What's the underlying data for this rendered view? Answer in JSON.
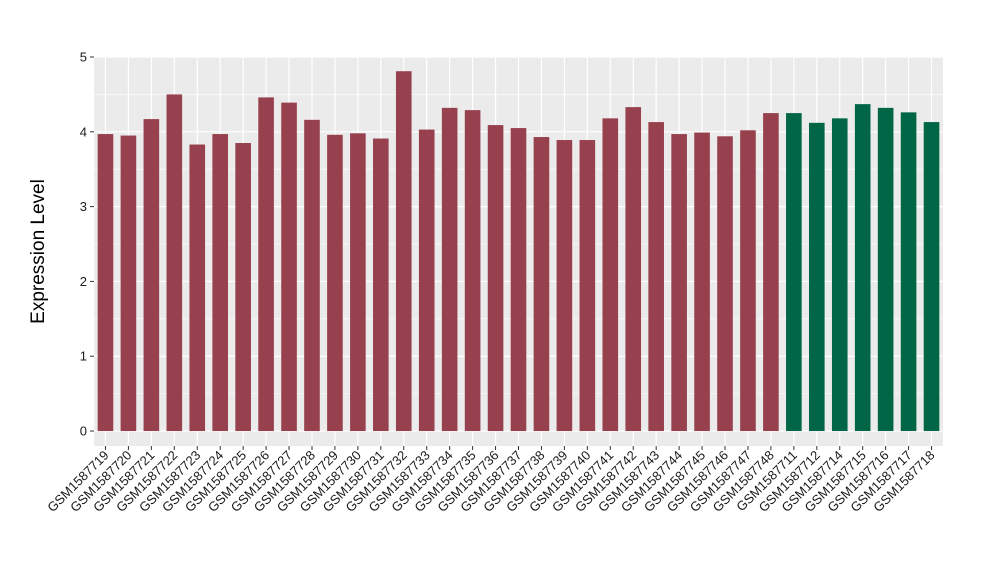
{
  "chart_data": {
    "type": "bar",
    "title": "",
    "xlabel": "",
    "ylabel": "Expression Level",
    "ylim": [
      -0.2,
      5.0
    ],
    "yticks": [
      0,
      1,
      2,
      3,
      4,
      5
    ],
    "grid": true,
    "legend": "none",
    "colors": {
      "group_a": "#97404e",
      "group_b": "#006646",
      "panel_bg": "#ebebeb",
      "grid": "#ffffff"
    },
    "categories": [
      "GSM1587719",
      "GSM1587720",
      "GSM1587721",
      "GSM1587722",
      "GSM1587723",
      "GSM1587724",
      "GSM1587725",
      "GSM1587726",
      "GSM1587727",
      "GSM1587728",
      "GSM1587729",
      "GSM1587730",
      "GSM1587731",
      "GSM1587732",
      "GSM1587733",
      "GSM1587734",
      "GSM1587735",
      "GSM1587736",
      "GSM1587737",
      "GSM1587738",
      "GSM1587739",
      "GSM1587740",
      "GSM1587741",
      "GSM1587742",
      "GSM1587743",
      "GSM1587744",
      "GSM1587745",
      "GSM1587746",
      "GSM1587747",
      "GSM1587748",
      "GSM1587711",
      "GSM1587712",
      "GSM1587714",
      "GSM1587715",
      "GSM1587716",
      "GSM1587717",
      "GSM1587718"
    ],
    "values": [
      3.97,
      3.95,
      4.17,
      4.5,
      3.83,
      3.97,
      3.85,
      4.46,
      4.39,
      4.16,
      3.96,
      3.98,
      3.91,
      4.81,
      4.03,
      4.32,
      4.29,
      4.09,
      4.05,
      3.93,
      3.89,
      3.89,
      4.18,
      4.33,
      4.13,
      3.97,
      3.99,
      3.94,
      4.02,
      4.25,
      4.25,
      4.12,
      4.18,
      4.37,
      4.32,
      4.26,
      4.13
    ],
    "groups": [
      "a",
      "a",
      "a",
      "a",
      "a",
      "a",
      "a",
      "a",
      "a",
      "a",
      "a",
      "a",
      "a",
      "a",
      "a",
      "a",
      "a",
      "a",
      "a",
      "a",
      "a",
      "a",
      "a",
      "a",
      "a",
      "a",
      "a",
      "a",
      "a",
      "a",
      "b",
      "b",
      "b",
      "b",
      "b",
      "b",
      "b"
    ]
  }
}
